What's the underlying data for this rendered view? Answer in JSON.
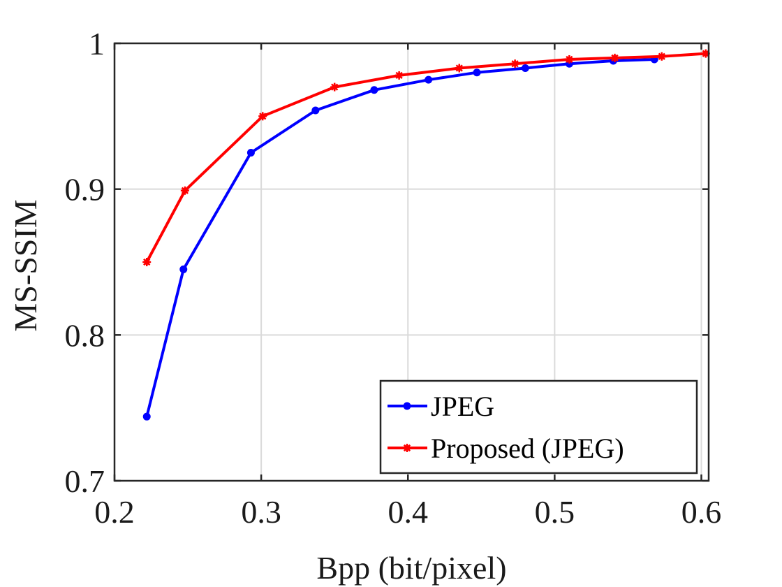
{
  "chart_data": {
    "type": "line",
    "xlabel": "Bpp (bit/pixel)",
    "ylabel": "MS-SSIM",
    "xlim": [
      0.2,
      0.605
    ],
    "ylim": [
      0.7,
      1.0
    ],
    "xticks": [
      0.2,
      0.3,
      0.4,
      0.5,
      0.6
    ],
    "yticks": [
      0.7,
      0.8,
      0.9,
      1.0
    ],
    "xtick_labels": [
      "0.2",
      "0.3",
      "0.4",
      "0.5",
      "0.6"
    ],
    "ytick_labels": [
      "0.7",
      "0.8",
      "0.9",
      "1"
    ],
    "grid": true,
    "legend_position": "bottom-right",
    "series": [
      {
        "name": "JPEG",
        "color": "#0000ff",
        "marker": "dot",
        "x": [
          0.222,
          0.247,
          0.293,
          0.337,
          0.377,
          0.414,
          0.447,
          0.48,
          0.51,
          0.54,
          0.568
        ],
        "y": [
          0.744,
          0.845,
          0.925,
          0.954,
          0.968,
          0.975,
          0.98,
          0.983,
          0.986,
          0.988,
          0.989
        ]
      },
      {
        "name": "Proposed (JPEG)",
        "color": "#ff0000",
        "marker": "star",
        "x": [
          0.222,
          0.248,
          0.301,
          0.35,
          0.394,
          0.435,
          0.473,
          0.51,
          0.541,
          0.573,
          0.603
        ],
        "y": [
          0.85,
          0.899,
          0.95,
          0.97,
          0.978,
          0.983,
          0.986,
          0.989,
          0.99,
          0.991,
          0.993
        ]
      }
    ]
  }
}
